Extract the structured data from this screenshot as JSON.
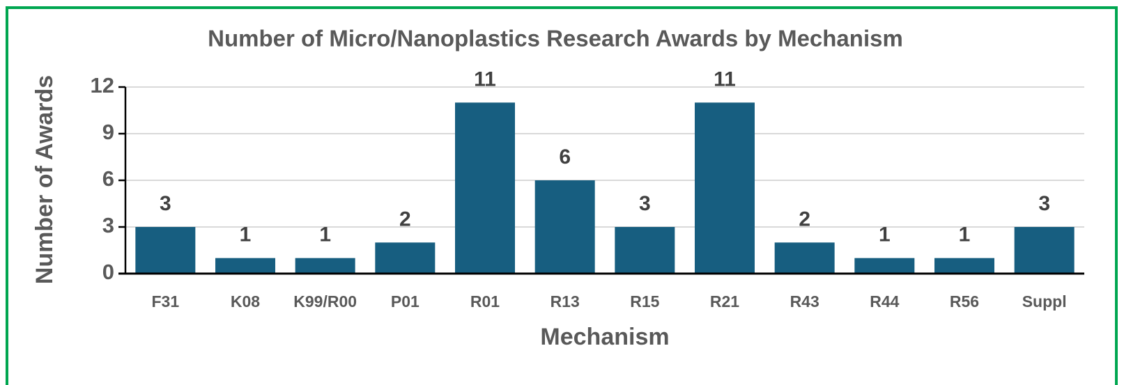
{
  "chart_data": {
    "type": "bar",
    "title": "Number of Micro/Nanoplastics Research Awards by Mechanism",
    "x_label": "Mechanism",
    "y_label": "Number of Awards",
    "categories": [
      "F31",
      "K08",
      "K99/R00",
      "P01",
      "R01",
      "R13",
      "R15",
      "R21",
      "R43",
      "R44",
      "R56",
      "Suppl"
    ],
    "values": [
      3,
      1,
      1,
      2,
      11,
      6,
      3,
      11,
      2,
      1,
      1,
      3
    ],
    "color": "#175e80",
    "ylim": [
      0,
      12
    ],
    "yticks": [
      0,
      3,
      6,
      9,
      12
    ],
    "grid": true
  }
}
